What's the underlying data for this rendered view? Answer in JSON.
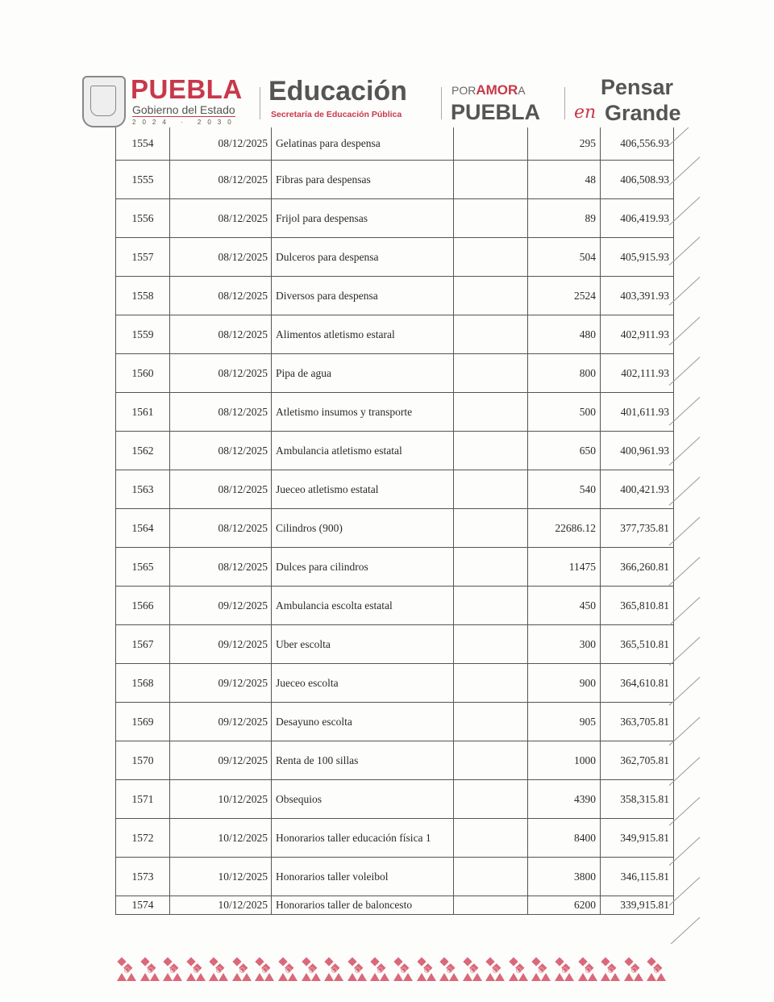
{
  "header": {
    "puebla": "PUEBLA",
    "gobierno": "Gobierno del Estado",
    "years": "2024 · 2030",
    "educacion": "Educación",
    "secretaria": "Secretaría de Educación Pública",
    "por": "POR",
    "amor": "AMOR",
    "a": "A",
    "puebla2": "PUEBLA",
    "pensar": "Pensar",
    "en": "en",
    "grande": "Grande"
  },
  "colors": {
    "brand_red": "#c8384a",
    "brand_gray": "#555555"
  },
  "rows": [
    {
      "num": "1554",
      "date": "08/12/2025",
      "concept": "Gelatinas para despensa",
      "amount": "295",
      "balance": "406,556.93"
    },
    {
      "num": "1555",
      "date": "08/12/2025",
      "concept": "Fibras para despensas",
      "amount": "48",
      "balance": "406,508.93"
    },
    {
      "num": "1556",
      "date": "08/12/2025",
      "concept": "Frijol para despensas",
      "amount": "89",
      "balance": "406,419.93"
    },
    {
      "num": "1557",
      "date": "08/12/2025",
      "concept": "Dulceros para despensa",
      "amount": "504",
      "balance": "405,915.93"
    },
    {
      "num": "1558",
      "date": "08/12/2025",
      "concept": "Diversos para despensa",
      "amount": "2524",
      "balance": "403,391.93"
    },
    {
      "num": "1559",
      "date": "08/12/2025",
      "concept": "Alimentos atletismo estaral",
      "amount": "480",
      "balance": "402,911.93"
    },
    {
      "num": "1560",
      "date": "08/12/2025",
      "concept": "Pipa de agua",
      "amount": "800",
      "balance": "402,111.93"
    },
    {
      "num": "1561",
      "date": "08/12/2025",
      "concept": "Atletismo insumos y transporte",
      "amount": "500",
      "balance": "401,611.93"
    },
    {
      "num": "1562",
      "date": "08/12/2025",
      "concept": "Ambulancia atletismo estatal",
      "amount": "650",
      "balance": "400,961.93"
    },
    {
      "num": "1563",
      "date": "08/12/2025",
      "concept": "Jueceo atletismo estatal",
      "amount": "540",
      "balance": "400,421.93"
    },
    {
      "num": "1564",
      "date": "08/12/2025",
      "concept": "Cilindros (900)",
      "amount": "22686.12",
      "balance": "377,735.81"
    },
    {
      "num": "1565",
      "date": "08/12/2025",
      "concept": "Dulces para cilindros",
      "amount": "11475",
      "balance": "366,260.81"
    },
    {
      "num": "1566",
      "date": "09/12/2025",
      "concept": "Ambulancia escolta estatal",
      "amount": "450",
      "balance": "365,810.81"
    },
    {
      "num": "1567",
      "date": "09/12/2025",
      "concept": "Uber escolta",
      "amount": "300",
      "balance": "365,510.81"
    },
    {
      "num": "1568",
      "date": "09/12/2025",
      "concept": "Jueceo escolta",
      "amount": "900",
      "balance": "364,610.81"
    },
    {
      "num": "1569",
      "date": "09/12/2025",
      "concept": "Desayuno escolta",
      "amount": "905",
      "balance": "363,705.81"
    },
    {
      "num": "1570",
      "date": "09/12/2025",
      "concept": "Renta de 100 sillas",
      "amount": "1000",
      "balance": "362,705.81"
    },
    {
      "num": "1571",
      "date": "10/12/2025",
      "concept": "Obsequios",
      "amount": "4390",
      "balance": "358,315.81"
    },
    {
      "num": "1572",
      "date": "10/12/2025",
      "concept": "Honorarios taller educación física 1",
      "amount": "8400",
      "balance": "349,915.81"
    },
    {
      "num": "1573",
      "date": "10/12/2025",
      "concept": "Honorarios taller voleibol",
      "amount": "3800",
      "balance": "346,115.81"
    },
    {
      "num": "1574",
      "date": "10/12/2025",
      "concept": "Honorarios taller de baloncesto",
      "amount": "6200",
      "balance": "339,915.81"
    }
  ]
}
